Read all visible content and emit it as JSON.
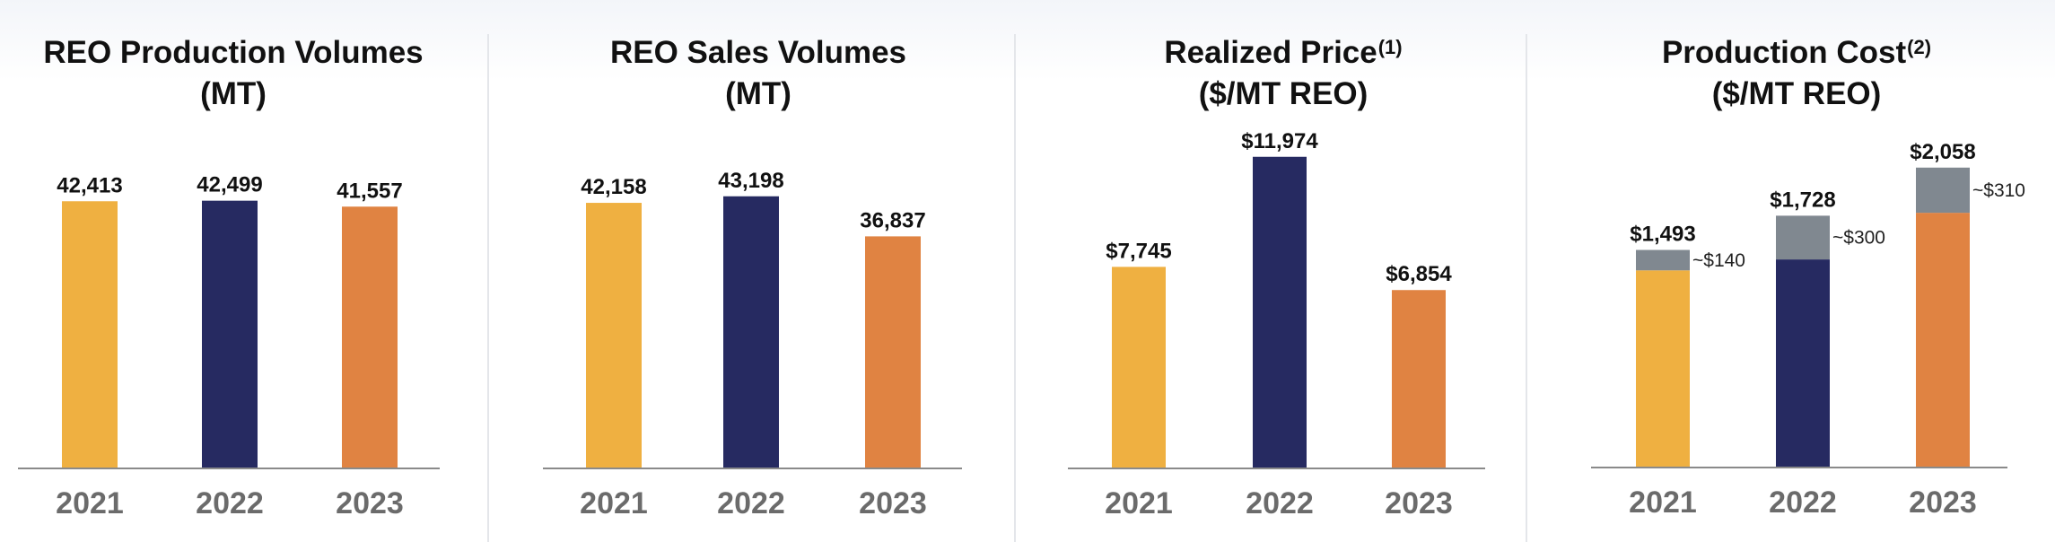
{
  "colors": {
    "2021": "#EFB041",
    "2022": "#262A61",
    "2023": "#E08342",
    "overlay": "#808890",
    "axis": "#8a8a8a"
  },
  "chart_data": [
    {
      "type": "bar",
      "title_lines": [
        "REO Production Volumes",
        "(MT)"
      ],
      "title_sup": "",
      "categories": [
        "2021",
        "2022",
        "2023"
      ],
      "values": [
        42413,
        42499,
        41557
      ],
      "labels": [
        "42,413",
        "42,499",
        "41,557"
      ],
      "ylim": [
        0,
        50000
      ]
    },
    {
      "type": "bar",
      "title_lines": [
        "REO Sales Volumes",
        "(MT)"
      ],
      "title_sup": "",
      "categories": [
        "2021",
        "2022",
        "2023"
      ],
      "values": [
        42158,
        43198,
        36837
      ],
      "labels": [
        "42,158",
        "43,198",
        "36,837"
      ],
      "ylim": [
        0,
        50000
      ]
    },
    {
      "type": "bar",
      "title_lines": [
        "Realized Price",
        "($/MT REO)"
      ],
      "title_sup": "(1)",
      "categories": [
        "2021",
        "2022",
        "2023"
      ],
      "values": [
        7745,
        11974,
        6854
      ],
      "labels": [
        "$7,745",
        "$11,974",
        "$6,854"
      ],
      "ylim": [
        0,
        14000
      ]
    },
    {
      "type": "bar",
      "stacked": true,
      "title_lines": [
        "Production Cost",
        "($/MT REO)"
      ],
      "title_sup": "(2)",
      "categories": [
        "2021",
        "2022",
        "2023"
      ],
      "values": [
        1493,
        1728,
        2058
      ],
      "labels": [
        "$1,493",
        "$1,728",
        "$2,058"
      ],
      "overlay_values": [
        140,
        300,
        310
      ],
      "overlay_labels": [
        "~$140",
        "~$300",
        "~$310"
      ],
      "ylim": [
        0,
        2500
      ]
    }
  ]
}
